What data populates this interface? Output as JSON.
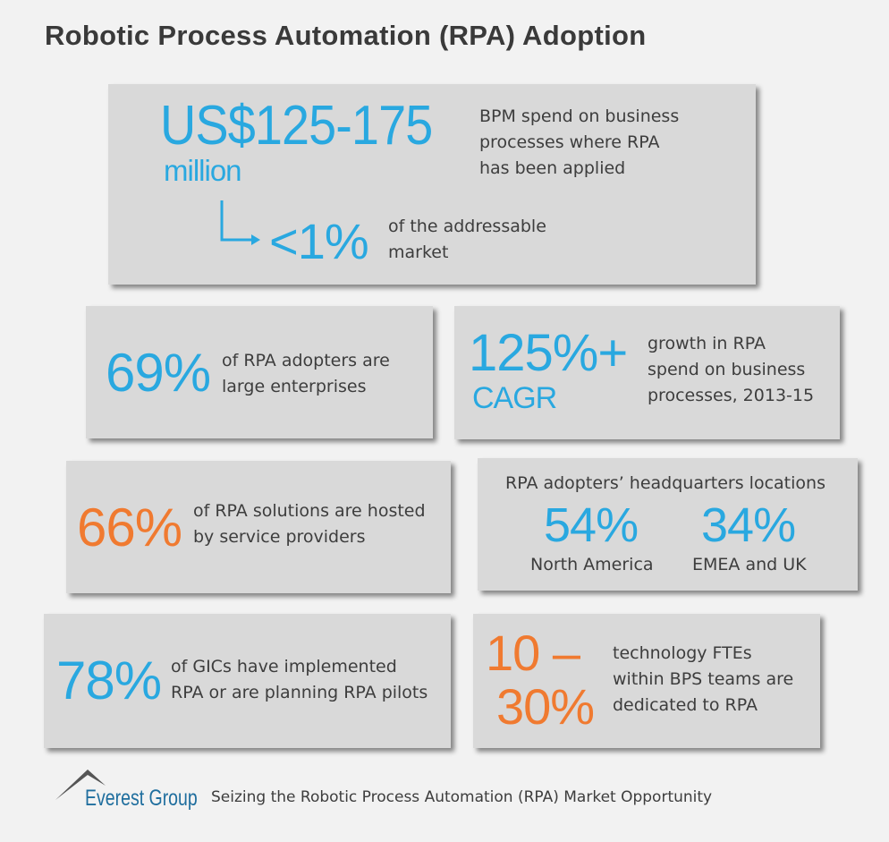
{
  "title": "Robotic Process Automation (RPA) Adoption",
  "colors": {
    "blue": "#29a8e0",
    "orange": "#f07a30",
    "card": "#d9d9d9",
    "background": "#f2f2f2",
    "brand": "#1f6e9e"
  },
  "cards": {
    "spend": {
      "value": "US$125-175",
      "unit": "million",
      "desc_lines": [
        "BPM spend on business",
        "processes where RPA",
        "has been applied"
      ],
      "sub_value": "<1%",
      "sub_desc_lines": [
        "of the addressable",
        "market"
      ]
    },
    "enterprises": {
      "value": "69%",
      "desc_lines": [
        "of RPA adopters are",
        "large enterprises"
      ]
    },
    "growth": {
      "value": "125%+",
      "unit": "CAGR",
      "desc_lines": [
        "growth in RPA",
        "spend on business",
        "processes, 2013-15"
      ]
    },
    "hosted": {
      "value": "66%",
      "desc_lines": [
        "of RPA solutions are hosted",
        "by service providers"
      ]
    },
    "hq": {
      "heading": "RPA adopters’ headquarters locations",
      "regions": [
        {
          "value": "54%",
          "label": "North America"
        },
        {
          "value": "34%",
          "label": "EMEA and UK"
        }
      ]
    },
    "gics": {
      "value": "78%",
      "desc_lines": [
        "of GICs have implemented",
        "RPA or are planning RPA pilots"
      ]
    },
    "ftes": {
      "value_lines": [
        "10 –",
        "30%"
      ],
      "desc_lines": [
        "technology FTEs",
        "within BPS teams are",
        "dedicated to RPA"
      ]
    }
  },
  "footer": {
    "brand": "Everest Group",
    "source": "Seizing the Robotic Process Automation (RPA) Market Opportunity"
  }
}
